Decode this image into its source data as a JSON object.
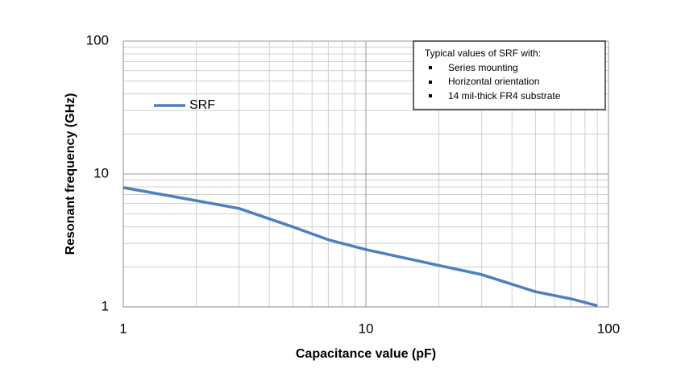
{
  "chart_data": {
    "type": "line",
    "xlabel": "Capacitance value (pF)",
    "ylabel": "Resonant frequency (GHz)",
    "log_x": true,
    "log_y": true,
    "grid": true,
    "xlim": [
      1,
      100
    ],
    "ylim": [
      1,
      100
    ],
    "xticks": [
      1,
      10,
      100
    ],
    "yticks": [
      1,
      10,
      100
    ],
    "x": [
      1,
      2,
      3,
      5,
      7,
      10,
      20,
      30,
      50,
      70,
      90
    ],
    "series": [
      {
        "name": "SRF",
        "color": "#4f7fbf",
        "values": [
          7.9,
          6.3,
          5.5,
          4.0,
          3.2,
          2.7,
          2.05,
          1.75,
          1.3,
          1.15,
          1.02
        ]
      }
    ],
    "annotation": {
      "title": "Typical values of SRF with:",
      "items": [
        "Series mounting",
        "Horizontal orientation",
        "14 mil-thick FR4 substrate"
      ]
    }
  }
}
